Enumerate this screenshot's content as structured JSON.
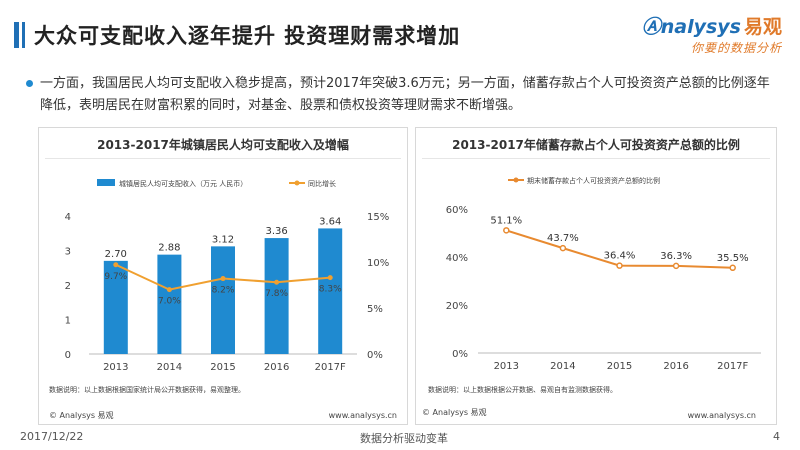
{
  "header": {
    "title": "大众可支配收入逐年提升   投资理财需求增加",
    "logo_text": "nalysys",
    "logo_cn": "易观",
    "logo_sub": "你要的数据分析"
  },
  "body_text": "一方面，我国居民人均可支配收入稳步提高，预计2017年突破3.6万元；另一方面，储蓄存款占个人可投资资产总额的比例逐年降低，表明居民在财富积累的同时，对基金、股票和债权投资等理财需求不断增强。",
  "left_panel": {
    "footnote": "数据说明：以上数据根据国家统计局公开数据获得，易观整理。",
    "copyright": "© Analysys 易观",
    "website": "www.analysys.cn"
  },
  "right_panel": {
    "footnote": "数据说明：以上数据根据公开数据、易观自有监测数据获得。",
    "copyright": "© Analysys 易观",
    "website": "www.analysys.cn"
  },
  "footer": {
    "date": "2017/12/22",
    "slogan": "数据分析驱动变革",
    "page": "4"
  },
  "colors": {
    "bar": "#1f8ad0",
    "line": "#f0a030",
    "line2": "#e88a30",
    "title_accent": "#1f6fb5"
  },
  "chart_data": [
    {
      "type": "bar",
      "title": "2013-2017年城镇居民人均可支配收入及增幅",
      "categories": [
        "2013",
        "2014",
        "2015",
        "2016",
        "2017F"
      ],
      "series": [
        {
          "name": "城镇居民人均可支配收入（万元 人民币）",
          "type": "bar",
          "axis": "left",
          "values": [
            2.7,
            2.88,
            3.12,
            3.36,
            3.64
          ],
          "labels": [
            "2.70",
            "2.88",
            "3.12",
            "3.36",
            "3.64"
          ]
        },
        {
          "name": "同比增长",
          "type": "line",
          "axis": "right",
          "values": [
            9.7,
            7.0,
            8.2,
            7.8,
            8.3
          ],
          "labels": [
            "9.7%",
            "7.0%",
            "8.2%",
            "7.8%",
            "8.3%"
          ]
        }
      ],
      "y_left": {
        "ticks": [
          "0",
          "1",
          "2",
          "3",
          "4"
        ],
        "ylim": [
          0,
          4
        ]
      },
      "y_right": {
        "ticks": [
          "0%",
          "5%",
          "10%",
          "15%"
        ],
        "ylim": [
          0,
          15
        ]
      }
    },
    {
      "type": "line",
      "title": "2013-2017年储蓄存款占个人可投资资产总额的比例",
      "categories": [
        "2013",
        "2014",
        "2015",
        "2016",
        "2017F"
      ],
      "series": [
        {
          "name": "期末储蓄存款占个人可投资资产总额的比例",
          "values": [
            51.1,
            43.7,
            36.4,
            36.3,
            35.5
          ],
          "labels": [
            "51.1%",
            "43.7%",
            "36.4%",
            "36.3%",
            "35.5%"
          ]
        }
      ],
      "y": {
        "ticks": [
          "0%",
          "20%",
          "40%",
          "60%"
        ],
        "ylim": [
          0,
          60
        ]
      }
    }
  ]
}
